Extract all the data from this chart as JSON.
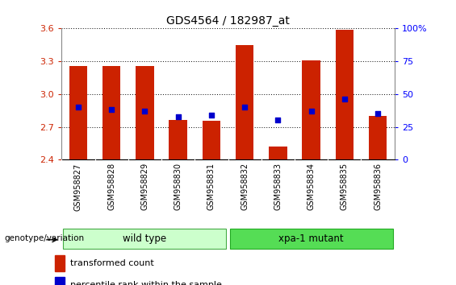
{
  "title": "GDS4564 / 182987_at",
  "samples": [
    "GSM958827",
    "GSM958828",
    "GSM958829",
    "GSM958830",
    "GSM958831",
    "GSM958832",
    "GSM958833",
    "GSM958834",
    "GSM958835",
    "GSM958836"
  ],
  "transformed_count": [
    3.255,
    3.255,
    3.255,
    2.76,
    2.755,
    3.45,
    2.52,
    3.305,
    3.59,
    2.8
  ],
  "percentile_rank": [
    40,
    38,
    37,
    33,
    34,
    40,
    30,
    37,
    46,
    35
  ],
  "ylim": [
    2.4,
    3.6
  ],
  "y2lim": [
    0,
    100
  ],
  "yticks": [
    2.4,
    2.7,
    3.0,
    3.3,
    3.6
  ],
  "y2ticks": [
    0,
    25,
    50,
    75,
    100
  ],
  "bar_color": "#cc2200",
  "dot_color": "#0000cc",
  "wild_type_indices": [
    0,
    1,
    2,
    3,
    4
  ],
  "mutant_indices": [
    5,
    6,
    7,
    8,
    9
  ],
  "wild_type_label": "wild type",
  "mutant_label": "xpa-1 mutant",
  "wild_type_color": "#ccffcc",
  "mutant_color": "#55dd55",
  "group_label": "genotype/variation",
  "legend_bar_label": "transformed count",
  "legend_dot_label": "percentile rank within the sample",
  "bar_width": 0.55,
  "tick_bg_color": "#d8d8d8",
  "plot_bg_color": "#ffffff",
  "border_color": "#888888"
}
